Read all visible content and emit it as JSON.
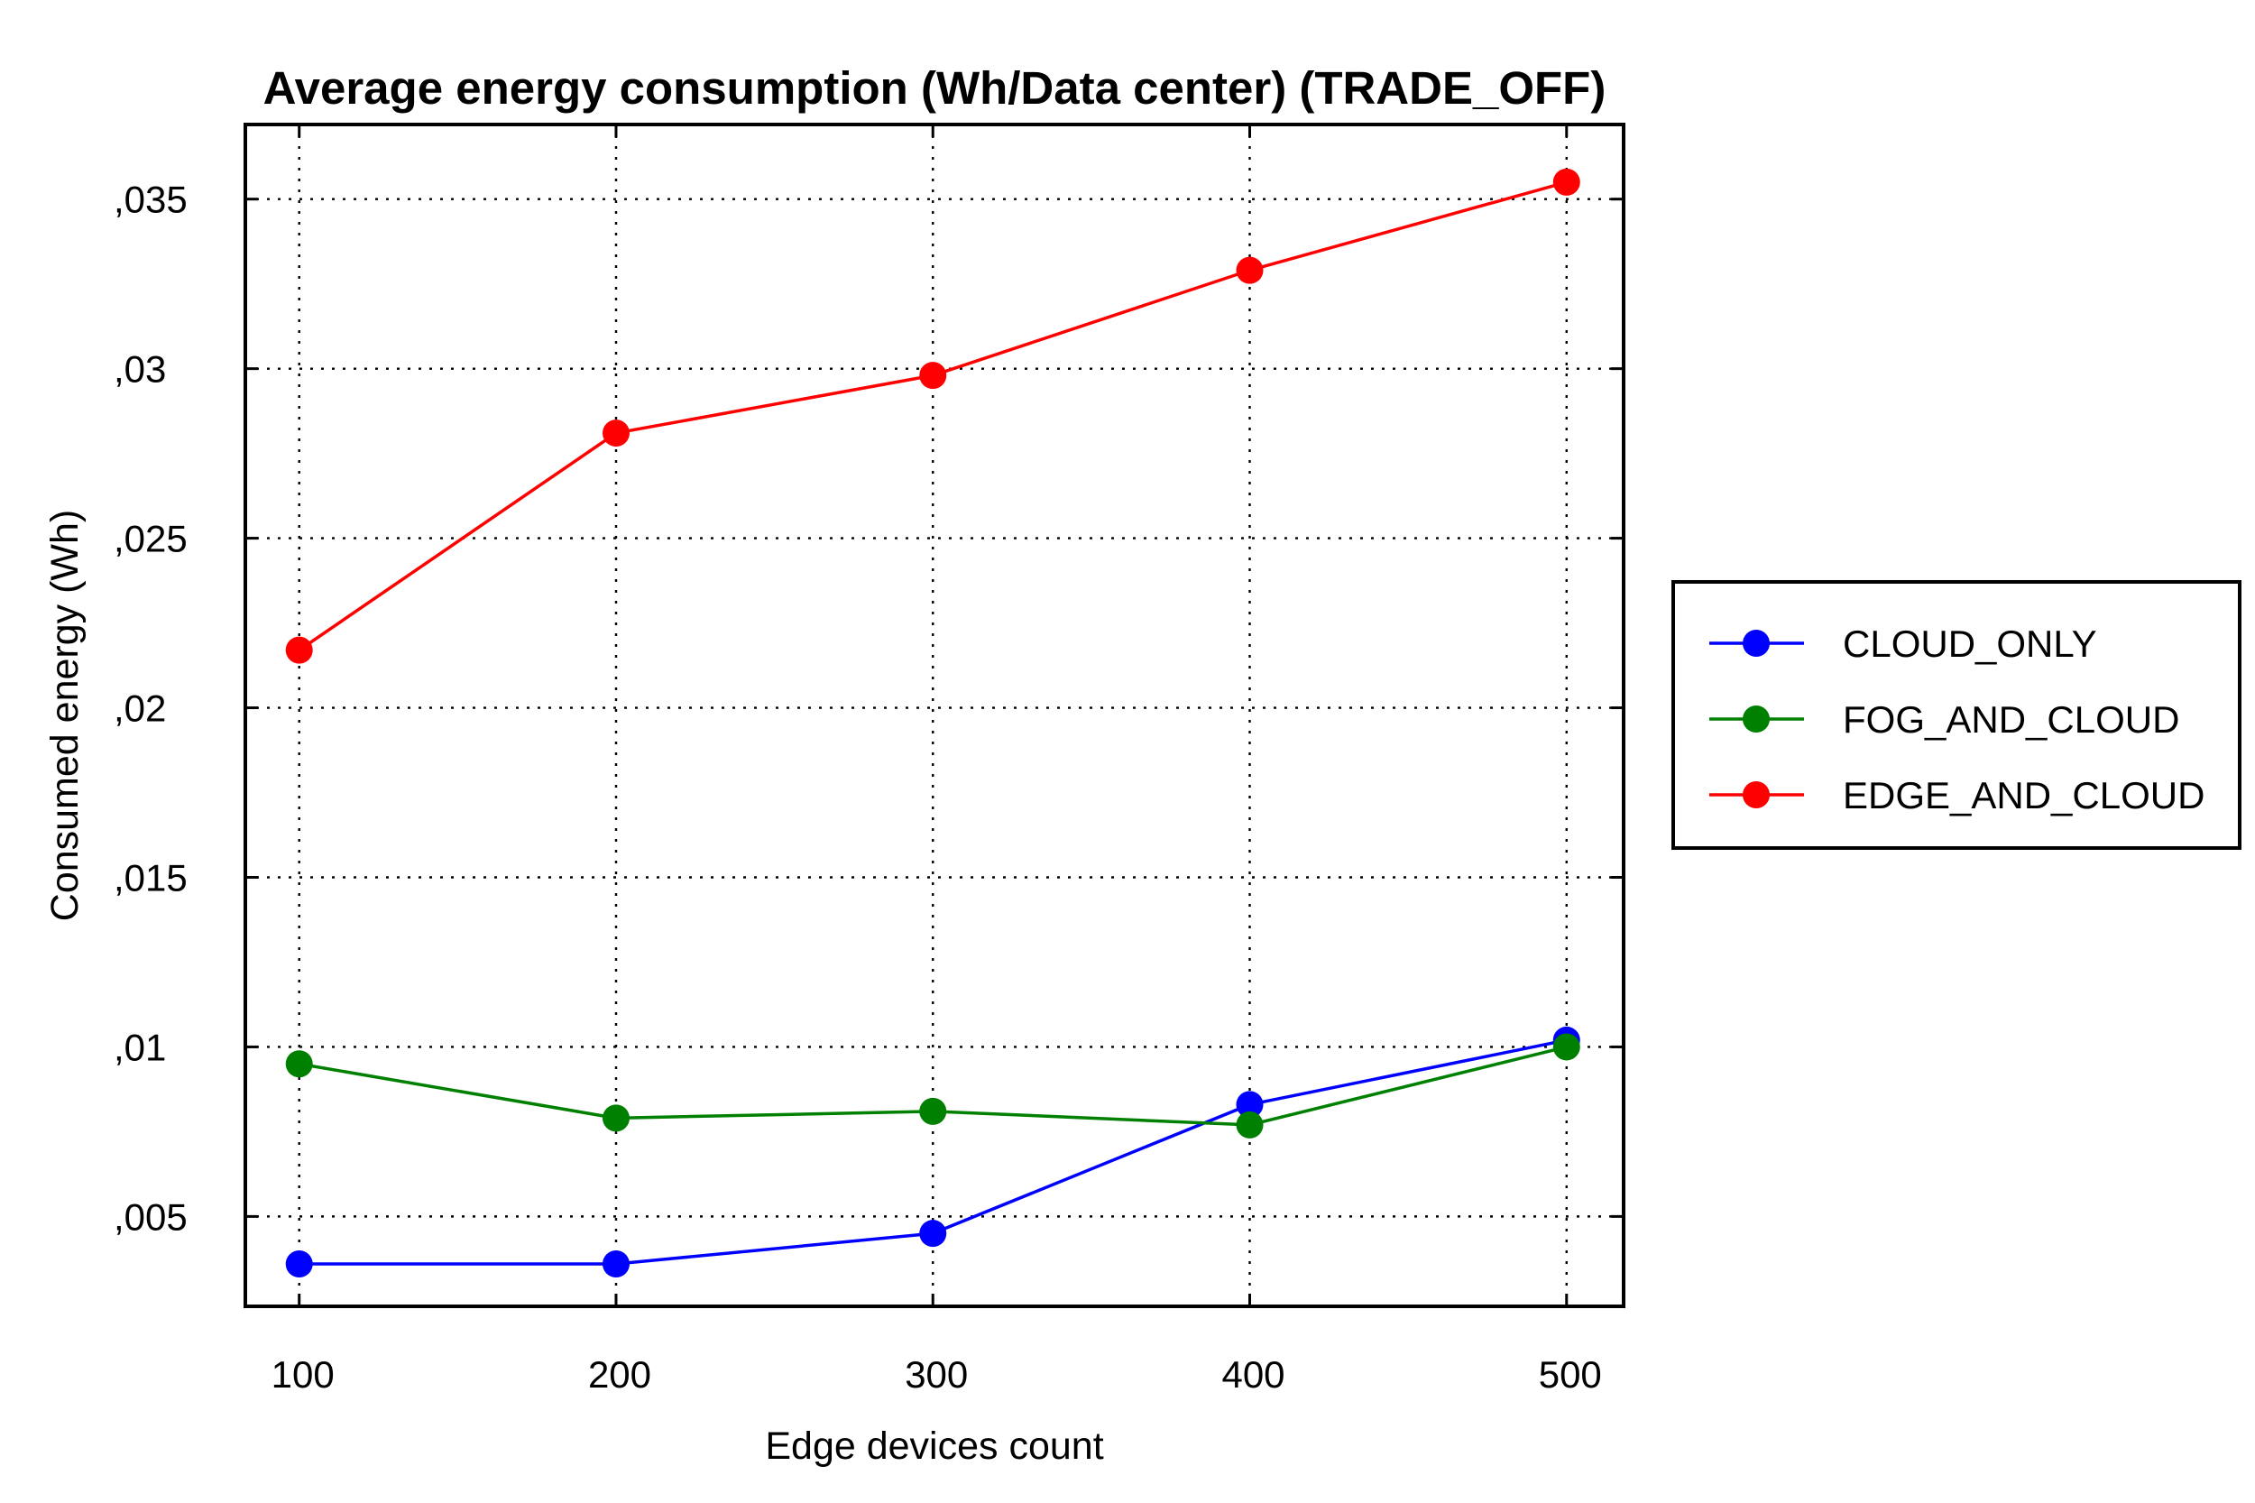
{
  "chart_data": {
    "type": "line",
    "title": "Average energy consumption (Wh/Data center) (TRADE_OFF)",
    "xlabel": "Edge devices count",
    "ylabel": "Consumed energy (Wh)",
    "x": [
      100,
      200,
      300,
      400,
      500
    ],
    "x_tick_labels": [
      "100",
      "200",
      "300",
      "400",
      "500"
    ],
    "y_ticks": [
      0.005,
      0.01,
      0.015,
      0.02,
      0.025,
      0.03,
      0.035
    ],
    "y_tick_labels": [
      ",005",
      ",01",
      ",015",
      ",02",
      ",025",
      ",03",
      ",035"
    ],
    "xlim": [
      83,
      518
    ],
    "ylim": [
      0.00235,
      0.0372
    ],
    "grid": true,
    "legend_position": "right",
    "series": [
      {
        "name": "CLOUD_ONLY",
        "color": "#0000ff",
        "values": [
          0.0036,
          0.0036,
          0.0045,
          0.0083,
          0.0102
        ]
      },
      {
        "name": "FOG_AND_CLOUD",
        "color": "#008000",
        "values": [
          0.0095,
          0.0079,
          0.0081,
          0.0077,
          0.01
        ]
      },
      {
        "name": "EDGE_AND_CLOUD",
        "color": "#ff0000",
        "values": [
          0.0217,
          0.0281,
          0.0298,
          0.0329,
          0.0355
        ]
      }
    ]
  }
}
